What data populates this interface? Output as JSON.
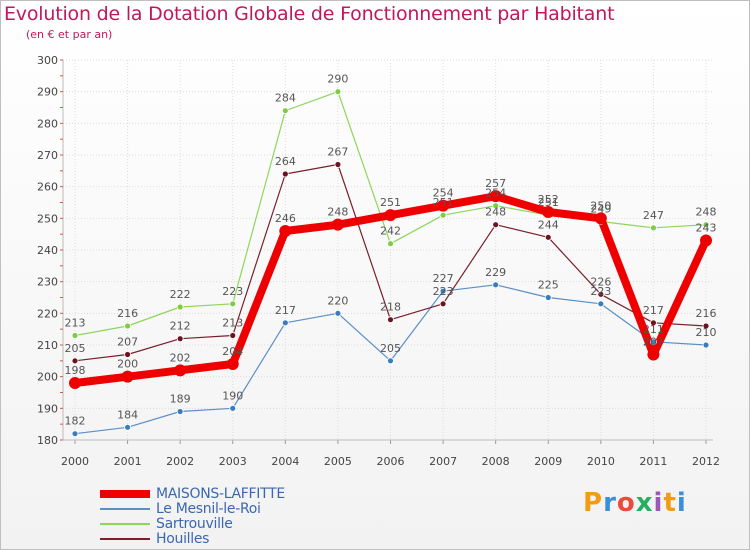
{
  "header": {
    "title": "Evolution de la Dotation Globale de Fonctionnement par Habitant",
    "subtitle": "(en € et par an)"
  },
  "logo": {
    "text": "Proxiti",
    "letters": [
      "P",
      "r",
      "o",
      "x",
      "i",
      "t",
      "i"
    ],
    "colors": [
      "#f39c12",
      "#3b8fd8",
      "#e74c3c",
      "#27ae60",
      "#9b59b6",
      "#f39c12",
      "#3b8fd8"
    ]
  },
  "chart_data": {
    "type": "line",
    "title": "Evolution de la Dotation Globale de Fonctionnement par Habitant",
    "subtitle": "(en € et par an)",
    "xlabel": "",
    "ylabel": "",
    "x": [
      "2000",
      "2001",
      "2002",
      "2003",
      "2004",
      "2005",
      "2006",
      "2007",
      "2008",
      "2009",
      "2010",
      "2011",
      "2012"
    ],
    "ylim": [
      180,
      300
    ],
    "yticks": [
      180,
      190,
      200,
      210,
      220,
      230,
      240,
      250,
      260,
      270,
      280,
      290,
      300
    ],
    "grid": true,
    "legend_position": "bottom-left",
    "series": [
      {
        "name": "Le Mesnil-le-Roi",
        "color": "#5a8fc7",
        "marker": "#3a7cc0",
        "width": 1.2,
        "radius": 3,
        "values": [
          182,
          184,
          189,
          190,
          217,
          220,
          205,
          227,
          229,
          225,
          223,
          211,
          210
        ]
      },
      {
        "name": "Sartrouville",
        "color": "#8ed65a",
        "marker": "#7ccc44",
        "width": 1.2,
        "radius": 3,
        "values": [
          213,
          216,
          222,
          223,
          284,
          290,
          242,
          251,
          254,
          251,
          249,
          247,
          248
        ]
      },
      {
        "name": "Houilles",
        "color": "#7a1f2b",
        "marker": "#6b1420",
        "width": 1.2,
        "radius": 3,
        "values": [
          205,
          207,
          212,
          213,
          264,
          267,
          218,
          223,
          248,
          244,
          226,
          217,
          216
        ]
      },
      {
        "name": "MAISONS-LAFFITTE",
        "color": "#ee0000",
        "marker": "#ee0000",
        "width": 8,
        "radius": 6,
        "values": [
          198,
          200,
          202,
          204,
          246,
          248,
          251,
          254,
          257,
          252,
          250,
          207,
          243
        ]
      }
    ],
    "legend": [
      "MAISONS-LAFFITTE",
      "Le Mesnil-le-Roi",
      "Sartrouville",
      "Houilles"
    ]
  }
}
